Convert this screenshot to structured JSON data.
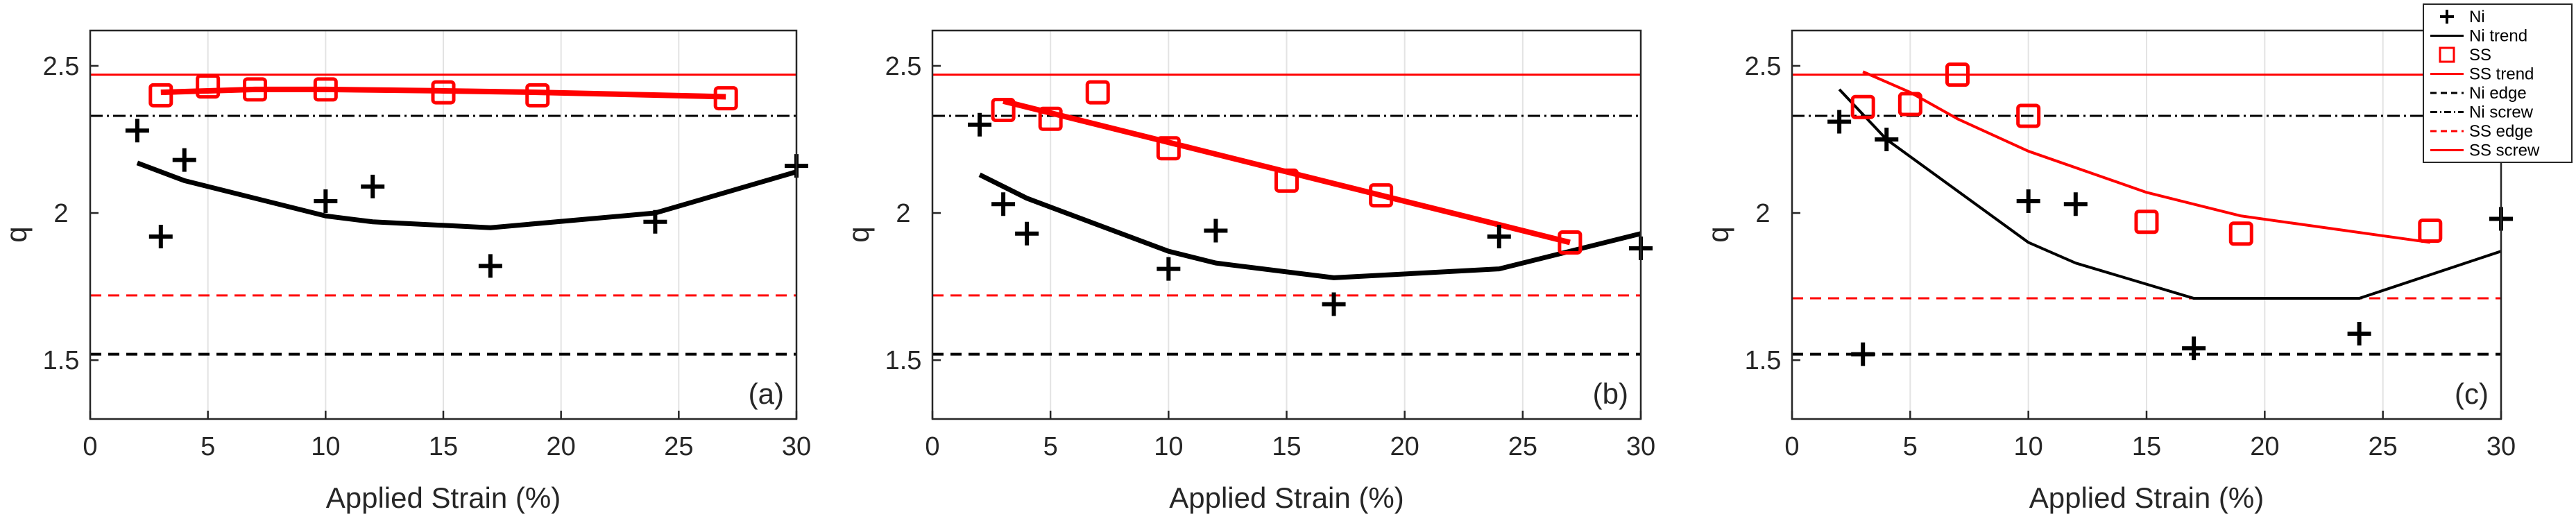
{
  "figure": {
    "legend": [
      {
        "label": "Ni",
        "style": "marker-plus",
        "color": "#000000"
      },
      {
        "label": "Ni trend",
        "style": "solid",
        "color": "#000000"
      },
      {
        "label": "SS",
        "style": "marker-square",
        "color": "#ff0000"
      },
      {
        "label": "SS trend",
        "style": "solid",
        "color": "#ff0000"
      },
      {
        "label": "Ni edge",
        "style": "dashed",
        "color": "#000000"
      },
      {
        "label": "Ni screw",
        "style": "dashdot",
        "color": "#000000"
      },
      {
        "label": "SS edge",
        "style": "dashed",
        "color": "#ff0000"
      },
      {
        "label": "SS screw",
        "style": "solid",
        "color": "#ff0000"
      }
    ]
  },
  "chart_data": [
    {
      "type": "scatter",
      "panel_label": "(a)",
      "xlabel": "Applied Strain (%)",
      "ylabel": "q",
      "xlim": [
        0,
        30
      ],
      "ylim": [
        1.3,
        2.62
      ],
      "xticks": [
        0,
        5,
        10,
        15,
        20,
        25,
        30
      ],
      "yticks": [
        1.5,
        2,
        2.5
      ],
      "ytick_labels": [
        "1.5",
        "2",
        "2.5"
      ],
      "grid": "vertical",
      "hlines": {
        "ni_edge": 1.52,
        "ni_screw": 2.33,
        "ss_edge": 1.72,
        "ss_screw": 2.47
      },
      "series": [
        {
          "name": "Ni",
          "x": [
            2,
            3,
            4,
            10,
            12,
            17,
            24,
            30
          ],
          "y": [
            2.28,
            1.92,
            2.18,
            2.04,
            2.09,
            1.82,
            1.97,
            2.16
          ]
        },
        {
          "name": "Ni trend",
          "x": [
            2,
            4,
            10,
            12,
            17,
            24,
            30
          ],
          "y": [
            2.17,
            2.11,
            1.99,
            1.97,
            1.95,
            2.0,
            2.14
          ]
        },
        {
          "name": "SS",
          "x": [
            3,
            5,
            7,
            10,
            15,
            19,
            27
          ],
          "y": [
            2.4,
            2.43,
            2.42,
            2.42,
            2.41,
            2.4,
            2.39
          ]
        },
        {
          "name": "SS trend",
          "x": [
            3,
            5,
            7,
            10,
            15,
            19,
            27
          ],
          "y": [
            2.41,
            2.415,
            2.42,
            2.42,
            2.415,
            2.41,
            2.395
          ]
        }
      ]
    },
    {
      "type": "scatter",
      "panel_label": "(b)",
      "xlabel": "Applied Strain (%)",
      "ylabel": "q",
      "xlim": [
        0,
        30
      ],
      "ylim": [
        1.3,
        2.62
      ],
      "xticks": [
        0,
        5,
        10,
        15,
        20,
        25,
        30
      ],
      "yticks": [
        1.5,
        2,
        2.5
      ],
      "ytick_labels": [
        "1.5",
        "2",
        "2.5"
      ],
      "grid": "vertical",
      "hlines": {
        "ni_edge": 1.52,
        "ni_screw": 2.33,
        "ss_edge": 1.72,
        "ss_screw": 2.47
      },
      "series": [
        {
          "name": "Ni",
          "x": [
            2,
            3,
            4,
            10,
            12,
            17,
            24,
            30
          ],
          "y": [
            2.3,
            2.03,
            1.93,
            1.81,
            1.94,
            1.69,
            1.92,
            1.88
          ]
        },
        {
          "name": "Ni trend",
          "x": [
            2,
            4,
            10,
            12,
            17,
            24,
            30
          ],
          "y": [
            2.13,
            2.05,
            1.87,
            1.83,
            1.78,
            1.81,
            1.93
          ]
        },
        {
          "name": "SS",
          "x": [
            3,
            5,
            7,
            10,
            15,
            19,
            27
          ],
          "y": [
            2.35,
            2.32,
            2.41,
            2.22,
            2.11,
            2.06,
            1.9
          ]
        },
        {
          "name": "SS trend",
          "x": [
            3,
            27
          ],
          "y": [
            2.38,
            1.9
          ]
        }
      ]
    },
    {
      "type": "scatter",
      "panel_label": "(c)",
      "xlabel": "Applied Strain (%)",
      "ylabel": "q",
      "xlim": [
        0,
        30
      ],
      "ylim": [
        1.3,
        2.62
      ],
      "xticks": [
        0,
        5,
        10,
        15,
        20,
        25,
        30
      ],
      "yticks": [
        1.5,
        2,
        2.5
      ],
      "ytick_labels": [
        "1.5",
        "2",
        "2.5"
      ],
      "grid": "vertical",
      "hlines": {
        "ni_edge": 1.52,
        "ni_screw": 2.33,
        "ss_edge": 1.71,
        "ss_screw": 2.47
      },
      "series": [
        {
          "name": "Ni",
          "x": [
            2,
            3,
            4,
            10,
            12,
            17,
            24,
            30
          ],
          "y": [
            2.31,
            1.52,
            2.25,
            2.04,
            2.03,
            1.54,
            1.59,
            1.98
          ]
        },
        {
          "name": "Ni trend",
          "x": [
            2,
            4,
            10,
            12,
            17,
            24,
            30
          ],
          "y": [
            2.42,
            2.25,
            1.9,
            1.83,
            1.71,
            1.71,
            1.87
          ]
        },
        {
          "name": "SS",
          "x": [
            3,
            5,
            7,
            10,
            15,
            19,
            27
          ],
          "y": [
            2.36,
            2.37,
            2.47,
            2.33,
            1.97,
            1.93,
            1.94
          ]
        },
        {
          "name": "SS trend",
          "x": [
            3,
            5,
            7,
            10,
            15,
            19,
            27
          ],
          "y": [
            2.48,
            2.41,
            2.32,
            2.21,
            2.07,
            1.99,
            1.9
          ]
        }
      ]
    }
  ]
}
